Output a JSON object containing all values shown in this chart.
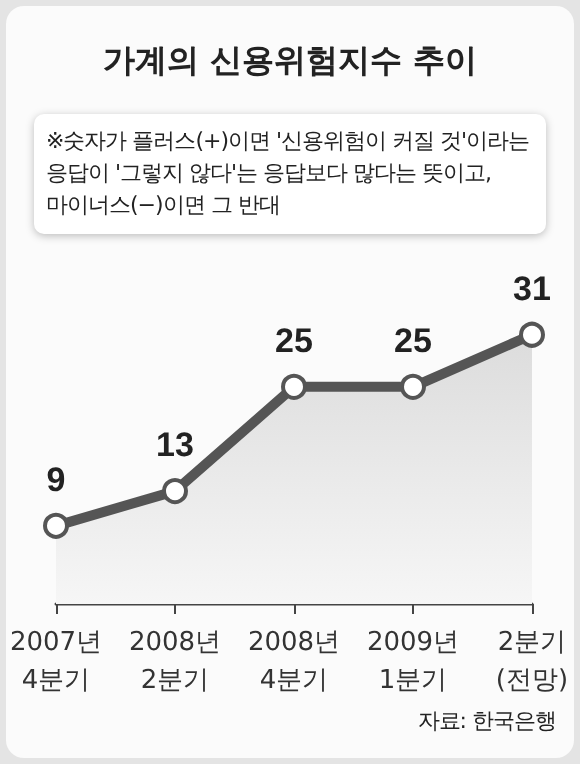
{
  "chart_data": {
    "type": "area",
    "title": "가계의 신용위험지수 추이",
    "categories": [
      "2007년\n4분기",
      "2008년\n2분기",
      "2008년\n4분기",
      "2009년\n1분기",
      "2분기\n(전망)"
    ],
    "series": [
      {
        "color": "#555555",
        "values": [
          9,
          13,
          25,
          25,
          31
        ]
      }
    ],
    "tick_labels": "x",
    "grid": false,
    "marker": "circle",
    "line_style": "solid",
    "data_labels": true,
    "annotations": [
      "※숫자가 플러스(+)이면 '신용위험이 커질 것'이라는\n응답이 '그렇지 않다'는 응답보다 많다는 뜻이고,\n마이너스(−)이면 그 반대",
      "자료: 한국은행"
    ]
  }
}
